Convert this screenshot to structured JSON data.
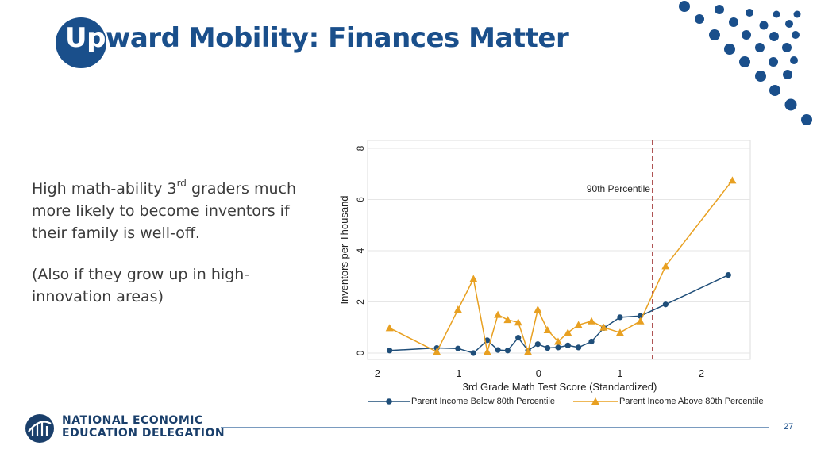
{
  "slide": {
    "title_prefix": "Up",
    "title_rest": "ward Mobility: Finances Matter",
    "body_line1_pre": "High math-ability 3",
    "body_line1_sup": "rd",
    "body_line1_post": " graders much more likely to become inventors if their family is well-off.",
    "body_line2": "(Also if they grow up in high-innovation areas)",
    "page_number": "27",
    "logo_line1": "NATIONAL ECONOMIC",
    "logo_line2": "EDUCATION DELEGATION",
    "accent_color": "#1a4f8b"
  },
  "chart_data": {
    "type": "line",
    "xlabel": "3rd Grade Math Test Score (Standardized)",
    "ylabel": "Inventors per Thousand",
    "xlim": [
      -2.1,
      2.6
    ],
    "ylim": [
      0,
      8
    ],
    "xticks": [
      "-2",
      "-1",
      "0",
      "1",
      "2"
    ],
    "xtick_values": [
      -2,
      -1,
      0,
      1,
      2
    ],
    "yticks": [
      "0",
      "2",
      "4",
      "6",
      "8"
    ],
    "ytick_values": [
      0,
      2,
      4,
      6,
      8
    ],
    "grid": true,
    "legend_position": "bottom",
    "annotation": {
      "text": "90th Percentile",
      "x": 1.4
    },
    "series": [
      {
        "name": "Parent Income Below 80th Percentile",
        "color": "#1f4e79",
        "marker": "circle",
        "x": [
          -1.83,
          -1.25,
          -0.99,
          -0.8,
          -0.63,
          -0.5,
          -0.38,
          -0.25,
          -0.13,
          -0.01,
          0.11,
          0.24,
          0.36,
          0.49,
          0.65,
          0.8,
          1.0,
          1.25,
          1.56,
          2.33
        ],
        "y": [
          0.1,
          0.2,
          0.18,
          0.0,
          0.5,
          0.12,
          0.1,
          0.6,
          0.1,
          0.35,
          0.2,
          0.22,
          0.3,
          0.22,
          0.45,
          0.98,
          1.4,
          1.45,
          1.9,
          3.05
        ]
      },
      {
        "name": "Parent Income Above 80th Percentile",
        "color": "#e8a021",
        "marker": "triangle",
        "x": [
          -1.83,
          -1.25,
          -0.99,
          -0.8,
          -0.63,
          -0.5,
          -0.38,
          -0.25,
          -0.13,
          -0.01,
          0.11,
          0.24,
          0.36,
          0.49,
          0.65,
          0.8,
          1.0,
          1.25,
          1.56,
          2.38
        ],
        "y": [
          0.98,
          0.05,
          1.7,
          2.9,
          0.05,
          1.5,
          1.3,
          1.2,
          0.05,
          1.7,
          0.9,
          0.45,
          0.8,
          1.1,
          1.25,
          1.0,
          0.8,
          1.25,
          3.4,
          6.75
        ]
      }
    ]
  }
}
